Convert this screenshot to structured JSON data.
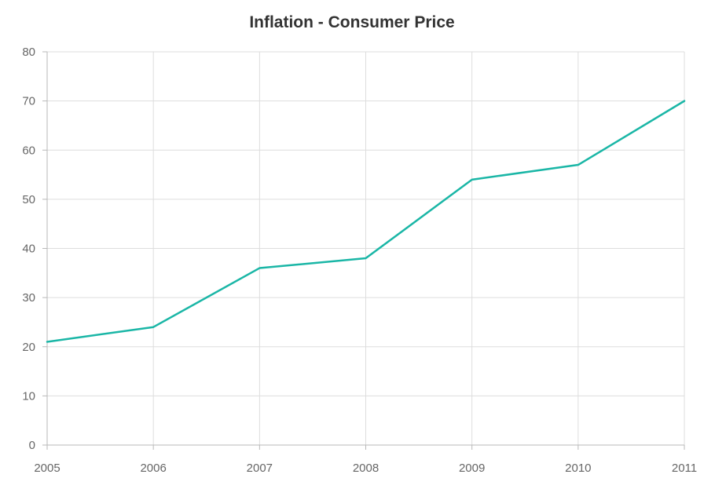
{
  "chart_data": {
    "type": "line",
    "title": "Inflation - Consumer Price",
    "xlabel": "",
    "ylabel": "",
    "categories": [
      "2005",
      "2006",
      "2007",
      "2008",
      "2009",
      "2010",
      "2011"
    ],
    "series": [
      {
        "values": [
          21,
          24,
          36,
          38,
          54,
          57,
          70
        ],
        "color": "#1ab6a6"
      }
    ],
    "ylim": [
      0,
      80
    ],
    "y_ticks": [
      0,
      10,
      20,
      30,
      40,
      50,
      60,
      70,
      80
    ],
    "grid": true,
    "legend": "none"
  }
}
